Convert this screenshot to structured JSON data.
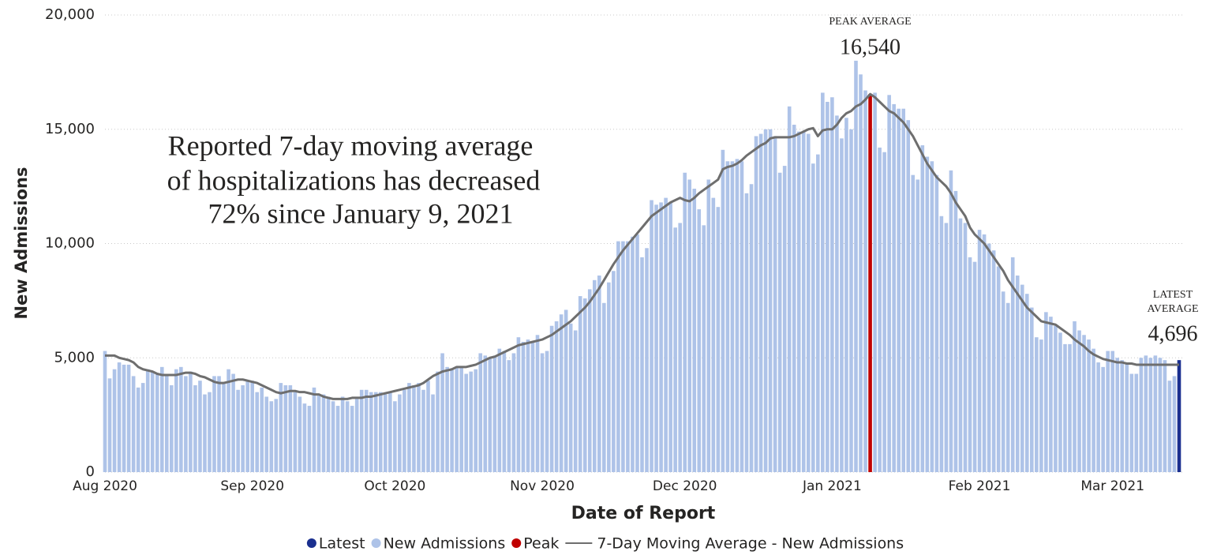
{
  "chart_data": {
    "type": "bar",
    "x_label": "Date of Report",
    "y_label": "New Admissions",
    "annotation": [
      "Reported 7-day moving average",
      "of hospitalizations has decreased",
      "72% since January 9, 2021"
    ],
    "peak_annotation": {
      "title": "PEAK AVERAGE",
      "value": 16540,
      "value_label": "16,540"
    },
    "latest_annotation": {
      "title": [
        "LATEST",
        "AVERAGE"
      ],
      "value": 4696,
      "value_label": "4,696"
    },
    "ylim": [
      0,
      20000
    ],
    "yticks": [
      0,
      {
        "value": 5000,
        "label": "5,000"
      },
      {
        "value": 10000,
        "label": "10,000"
      },
      {
        "value": 15000,
        "label": "15,000"
      },
      {
        "value": 20000,
        "label": "20,000"
      }
    ],
    "grid": true,
    "legend": "bottom",
    "categories": [
      "Aug 2020",
      null,
      null,
      null,
      null,
      null,
      null,
      null,
      null,
      null,
      null,
      null,
      null,
      null,
      null,
      null,
      null,
      null,
      null,
      null,
      null,
      null,
      null,
      null,
      null,
      null,
      null,
      null,
      null,
      null,
      null,
      "Sep 2020",
      null,
      null,
      null,
      null,
      null,
      null,
      null,
      null,
      null,
      null,
      null,
      null,
      null,
      null,
      null,
      null,
      null,
      null,
      null,
      null,
      null,
      null,
      null,
      null,
      null,
      null,
      null,
      null,
      null,
      "Oct 2020",
      null,
      null,
      null,
      null,
      null,
      null,
      null,
      null,
      null,
      null,
      null,
      null,
      null,
      null,
      null,
      null,
      null,
      null,
      null,
      null,
      null,
      null,
      null,
      null,
      null,
      null,
      null,
      null,
      null,
      null,
      "Nov 2020",
      null,
      null,
      null,
      null,
      null,
      null,
      null,
      null,
      null,
      null,
      null,
      null,
      null,
      null,
      null,
      null,
      null,
      null,
      null,
      null,
      null,
      null,
      null,
      null,
      null,
      null,
      null,
      null,
      null,
      "Dec 2020",
      null,
      null,
      null,
      null,
      null,
      null,
      null,
      null,
      null,
      null,
      null,
      null,
      null,
      null,
      null,
      null,
      null,
      null,
      null,
      null,
      null,
      null,
      null,
      null,
      null,
      null,
      null,
      null,
      null,
      null,
      "Jan 2021",
      null,
      null,
      null,
      null,
      null,
      null,
      null,
      null,
      null,
      null,
      null,
      null,
      null,
      null,
      null,
      null,
      null,
      null,
      null,
      null,
      null,
      null,
      null,
      null,
      null,
      null,
      null,
      null,
      null,
      null,
      "Feb 2021",
      null,
      null,
      null,
      null,
      null,
      null,
      null,
      null,
      null,
      null,
      null,
      null,
      null,
      null,
      null,
      null,
      null,
      null,
      null,
      null,
      null,
      null,
      null,
      null,
      null,
      null,
      null,
      "Mar 2021",
      null,
      null,
      null,
      null,
      null,
      null,
      null,
      null,
      null,
      null,
      null,
      null,
      null,
      null
    ],
    "series": [
      {
        "name": "Latest",
        "type": "bar",
        "color": "#1a2f8f",
        "values": [
          null,
          null,
          null,
          null,
          null,
          null,
          null,
          null,
          null,
          null,
          null,
          null,
          null,
          null,
          null,
          null,
          null,
          null,
          null,
          null,
          null,
          null,
          null,
          null,
          null,
          null,
          null,
          null,
          null,
          null,
          null,
          null,
          null,
          null,
          null,
          null,
          null,
          null,
          null,
          null,
          null,
          null,
          null,
          null,
          null,
          null,
          null,
          null,
          null,
          null,
          null,
          null,
          null,
          null,
          null,
          null,
          null,
          null,
          null,
          null,
          null,
          null,
          null,
          null,
          null,
          null,
          null,
          null,
          null,
          null,
          null,
          null,
          null,
          null,
          null,
          null,
          null,
          null,
          null,
          null,
          null,
          null,
          null,
          null,
          null,
          null,
          null,
          null,
          null,
          null,
          null,
          null,
          null,
          null,
          null,
          null,
          null,
          null,
          null,
          null,
          null,
          null,
          null,
          null,
          null,
          null,
          null,
          null,
          null,
          null,
          null,
          null,
          null,
          null,
          null,
          null,
          null,
          null,
          null,
          null,
          null,
          null,
          null,
          null,
          null,
          null,
          null,
          null,
          null,
          null,
          null,
          null,
          null,
          null,
          null,
          null,
          null,
          null,
          null,
          null,
          null,
          null,
          null,
          null,
          null,
          null,
          null,
          null,
          null,
          null,
          null,
          null,
          null,
          null,
          null,
          null,
          null,
          null,
          null,
          null,
          null,
          null,
          null,
          null,
          null,
          null,
          null,
          null,
          null,
          null,
          null,
          null,
          null,
          null,
          null,
          null,
          null,
          null,
          null,
          null,
          null,
          null,
          null,
          null,
          null,
          null,
          null,
          null,
          null,
          null,
          null,
          null,
          null,
          null,
          null,
          null,
          null,
          null,
          null,
          null,
          null,
          null,
          null,
          null,
          null,
          null,
          null,
          null,
          null,
          null,
          null,
          null,
          null,
          null,
          null,
          null,
          null,
          null,
          null,
          null,
          null,
          null,
          null,
          null,
          null,
          null,
          4900
        ]
      },
      {
        "name": "New Admissions",
        "type": "bar",
        "color": "#aec3e8",
        "values": [
          5300,
          4100,
          4500,
          4800,
          4700,
          4700,
          4200,
          3700,
          3900,
          4500,
          4400,
          4300,
          4600,
          4200,
          3800,
          4500,
          4600,
          4200,
          4400,
          3800,
          4000,
          3400,
          3500,
          4200,
          4200,
          3900,
          4500,
          4300,
          3600,
          3800,
          4000,
          4000,
          3500,
          3700,
          3300,
          3100,
          3200,
          3900,
          3800,
          3800,
          3500,
          3300,
          3000,
          2900,
          3700,
          3400,
          3400,
          3300,
          3100,
          2900,
          3300,
          3100,
          2900,
          3200,
          3600,
          3600,
          3500,
          3500,
          3500,
          3400,
          3500,
          3100,
          3400,
          3600,
          3900,
          3800,
          3900,
          3600,
          4000,
          3400,
          4400,
          5200,
          4600,
          4500,
          4600,
          4600,
          4300,
          4400,
          4500,
          5200,
          5100,
          5000,
          5100,
          5400,
          5300,
          4900,
          5200,
          5900,
          5700,
          5800,
          5700,
          6000,
          5200,
          5300,
          6400,
          6600,
          6900,
          7100,
          6500,
          6200,
          7700,
          7600,
          8000,
          8400,
          8600,
          7400,
          8300,
          8800,
          10100,
          10100,
          10100,
          10300,
          10400,
          9400,
          9800,
          11900,
          11700,
          11800,
          12000,
          11800,
          10700,
          10900,
          13100,
          12800,
          12400,
          11500,
          10800,
          12800,
          12000,
          11600,
          14100,
          13600,
          13600,
          13700,
          13600,
          12200,
          12600,
          14700,
          14800,
          15000,
          15000,
          14700,
          13100,
          13400,
          16000,
          15200,
          14900,
          14900,
          14800,
          13500,
          13900,
          16600,
          16200,
          16400,
          15600,
          14600,
          15500,
          15000,
          18000,
          17400,
          16700,
          null,
          16600,
          14200,
          14000,
          16500,
          16100,
          15900,
          15900,
          15400,
          13000,
          12800,
          14300,
          13800,
          13600,
          13000,
          11200,
          10900,
          13200,
          12300,
          11100,
          10900,
          9400,
          9200,
          10600,
          10400,
          10000,
          9700,
          9000,
          7900,
          7400,
          9400,
          8600,
          8200,
          7800,
          7200,
          5900,
          5800,
          7000,
          6800,
          6400,
          6100,
          5600,
          5600,
          6600,
          6200,
          6000,
          5800,
          5400,
          4800,
          4600,
          5300,
          5300,
          5000,
          4900,
          4800,
          4300,
          4300,
          5000,
          5100,
          5000,
          5100,
          5000,
          4900,
          4000,
          4200,
          null
        ]
      },
      {
        "name": "Peak",
        "type": "bar",
        "color": "#c00000",
        "values": [
          null,
          null,
          null,
          null,
          null,
          null,
          null,
          null,
          null,
          null,
          null,
          null,
          null,
          null,
          null,
          null,
          null,
          null,
          null,
          null,
          null,
          null,
          null,
          null,
          null,
          null,
          null,
          null,
          null,
          null,
          null,
          null,
          null,
          null,
          null,
          null,
          null,
          null,
          null,
          null,
          null,
          null,
          null,
          null,
          null,
          null,
          null,
          null,
          null,
          null,
          null,
          null,
          null,
          null,
          null,
          null,
          null,
          null,
          null,
          null,
          null,
          null,
          null,
          null,
          null,
          null,
          null,
          null,
          null,
          null,
          null,
          null,
          null,
          null,
          null,
          null,
          null,
          null,
          null,
          null,
          null,
          null,
          null,
          null,
          null,
          null,
          null,
          null,
          null,
          null,
          null,
          null,
          null,
          null,
          null,
          null,
          null,
          null,
          null,
          null,
          null,
          null,
          null,
          null,
          null,
          null,
          null,
          null,
          null,
          null,
          null,
          null,
          null,
          null,
          null,
          null,
          null,
          null,
          null,
          null,
          null,
          null,
          null,
          null,
          null,
          null,
          null,
          null,
          null,
          null,
          null,
          null,
          null,
          null,
          null,
          null,
          null,
          null,
          null,
          null,
          null,
          null,
          null,
          null,
          null,
          null,
          null,
          null,
          null,
          null,
          null,
          null,
          null,
          null,
          null,
          null,
          null,
          null,
          null,
          null,
          null,
          16540,
          null,
          null,
          null,
          null,
          null,
          null,
          null,
          null,
          null,
          null,
          null,
          null,
          null,
          null,
          null,
          null,
          null,
          null,
          null,
          null,
          null,
          null,
          null,
          null,
          null,
          null,
          null,
          null,
          null,
          null,
          null,
          null,
          null,
          null,
          null,
          null,
          null,
          null,
          null,
          null,
          null,
          null,
          null,
          null,
          null,
          null,
          null,
          null,
          null,
          null,
          null,
          null,
          null,
          null,
          null,
          null,
          null,
          null,
          null,
          null,
          null,
          null,
          null,
          null,
          null
        ]
      },
      {
        "name": "7-Day Moving Average - New Admissions",
        "type": "line",
        "color": "#6e6e6e",
        "values": [
          5100,
          5100,
          5100,
          5000,
          4950,
          4900,
          4800,
          4600,
          4500,
          4450,
          4400,
          4300,
          4250,
          4250,
          4250,
          4250,
          4300,
          4350,
          4350,
          4300,
          4200,
          4150,
          4050,
          3950,
          3900,
          3900,
          3950,
          4000,
          4050,
          4050,
          4000,
          3950,
          3900,
          3800,
          3700,
          3600,
          3500,
          3450,
          3500,
          3550,
          3550,
          3500,
          3500,
          3450,
          3400,
          3400,
          3300,
          3250,
          3200,
          3200,
          3200,
          3200,
          3250,
          3250,
          3250,
          3300,
          3300,
          3350,
          3400,
          3450,
          3500,
          3550,
          3600,
          3650,
          3700,
          3750,
          3800,
          3900,
          4050,
          4200,
          4300,
          4400,
          4450,
          4500,
          4600,
          4600,
          4600,
          4650,
          4700,
          4800,
          4900,
          5000,
          5050,
          5150,
          5250,
          5350,
          5450,
          5550,
          5600,
          5650,
          5700,
          5750,
          5800,
          5900,
          6000,
          6150,
          6300,
          6450,
          6600,
          6800,
          7000,
          7200,
          7450,
          7750,
          8050,
          8400,
          8750,
          9100,
          9400,
          9700,
          9950,
          10200,
          10450,
          10700,
          10950,
          11200,
          11350,
          11500,
          11650,
          11800,
          11900,
          12000,
          11900,
          11850,
          12000,
          12200,
          12350,
          12500,
          12650,
          12800,
          13250,
          13350,
          13400,
          13500,
          13650,
          13850,
          14000,
          14150,
          14300,
          14400,
          14600,
          14650,
          14650,
          14650,
          14650,
          14700,
          14800,
          14900,
          15000,
          15050,
          14700,
          14950,
          15000,
          15000,
          15200,
          15500,
          15700,
          15800,
          16000,
          16100,
          16300,
          16540,
          16400,
          16200,
          16000,
          15800,
          15700,
          15500,
          15300,
          15000,
          14700,
          14300,
          13900,
          13500,
          13200,
          12900,
          12700,
          12500,
          12200,
          11800,
          11500,
          11200,
          10700,
          10400,
          10200,
          10000,
          9700,
          9400,
          9100,
          8800,
          8400,
          8100,
          7800,
          7500,
          7200,
          7000,
          6800,
          6600,
          6550,
          6500,
          6450,
          6300,
          6150,
          6000,
          5800,
          5650,
          5500,
          5300,
          5150,
          5050,
          4950,
          4900,
          4850,
          4800,
          4800,
          4750,
          4750,
          4700,
          4700,
          4700,
          4700,
          4700,
          4700,
          4700,
          4700,
          4700,
          4696
        ]
      }
    ]
  }
}
